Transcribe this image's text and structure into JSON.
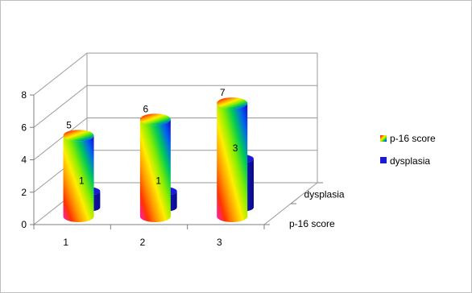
{
  "chart_data": {
    "type": "bar",
    "title": "",
    "xlabel": "",
    "ylabel": "",
    "categories": [
      "1",
      "2",
      "3"
    ],
    "series": [
      {
        "name": "p-16 score",
        "values": [
          5,
          6,
          7
        ]
      },
      {
        "name": "dysplasia",
        "values": [
          1,
          1,
          3
        ]
      }
    ],
    "ylim": [
      0,
      8
    ],
    "yticks": [
      "0",
      "2",
      "4",
      "6",
      "8"
    ],
    "depth_labels": [
      "dysplasia",
      "p-16 score"
    ],
    "legend_position": "right",
    "grid": true,
    "colors": {
      "dysplasia": "#1a1ad9",
      "dysplasia_dark": "#0b0b8a",
      "rainbow": [
        "#ff1ad0",
        "#ff3300",
        "#ff9900",
        "#ffee00",
        "#88ee00",
        "#00cc55",
        "#0066ee",
        "#1a00cc"
      ]
    }
  }
}
